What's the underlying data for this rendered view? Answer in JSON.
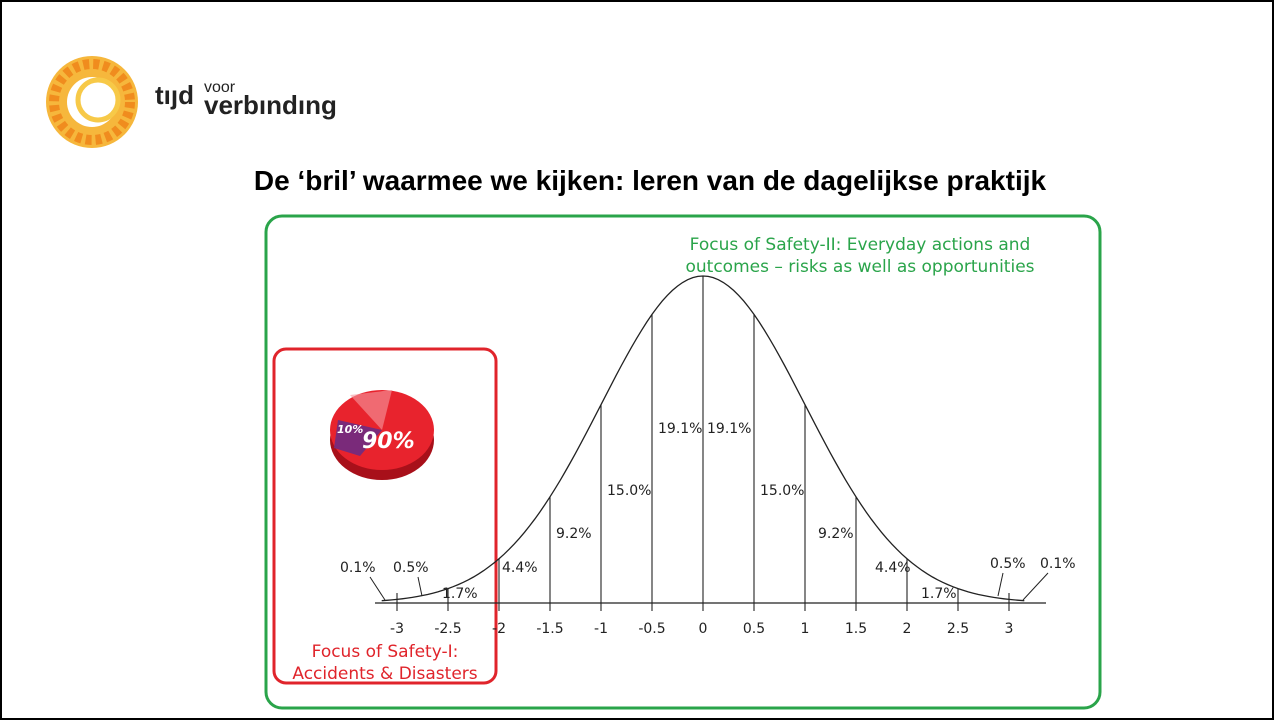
{
  "logo": {
    "main": "tıȷd",
    "small": "voor",
    "big": "verbındıng"
  },
  "title": "De ‘bril’ waarmee we kijken: leren van de dagelijkse praktijk",
  "figure": {
    "safety2_caption": [
      "Focus of Safety-II: Everyday actions and",
      "outcomes – risks as well as opportunities"
    ],
    "safety1_caption": [
      "Focus of Safety-I:",
      "Accidents & Disasters"
    ],
    "pie_labels": [
      "10%",
      "90%"
    ],
    "x_labels": [
      "-3",
      "-2.5",
      "-2",
      "-1.5",
      "-1",
      "-0.5",
      "0",
      "0.5",
      "1",
      "1.5",
      "2",
      "2.5",
      "3"
    ],
    "band_labels": [
      "0.1%",
      "0.5%",
      "1.7%",
      "4.4%",
      "9.2%",
      "15.0%",
      "19.1%",
      "19.1%",
      "15.0%",
      "9.2%",
      "4.4%",
      "1.7%",
      "0.5%",
      "0.1%"
    ]
  }
}
